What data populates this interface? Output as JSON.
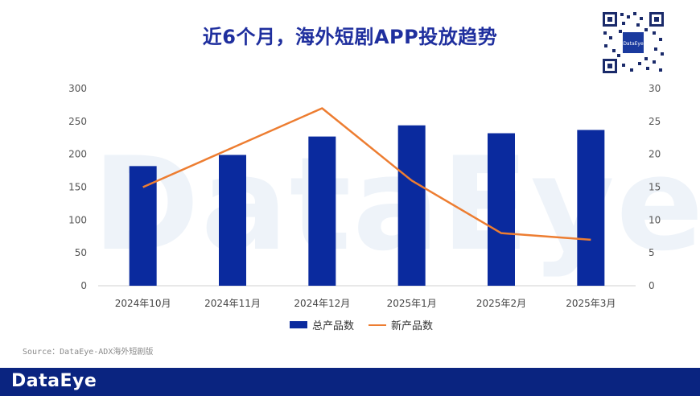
{
  "title": "近6个月，海外短剧APP投放趋势",
  "watermark": "DataEye",
  "source": "Source：DataEye-ADX海外短剧版",
  "footer_logo": "DataEye",
  "qr_label": "DataEye",
  "colors": {
    "bar": "#0a2a9e",
    "line": "#ed7d31",
    "title": "#1f2f9e",
    "footer": "#0a2480"
  },
  "chart_data": {
    "type": "bar",
    "categories": [
      "2024年10月",
      "2024年11月",
      "2024年12月",
      "2025年1月",
      "2025年2月",
      "2025年3月"
    ],
    "series": [
      {
        "name": "总产品数",
        "type": "bar",
        "axis": "left",
        "values": [
          182,
          199,
          227,
          244,
          232,
          237
        ]
      },
      {
        "name": "新产品数",
        "type": "line",
        "axis": "right",
        "values": [
          15,
          21,
          27,
          16,
          8,
          7
        ]
      }
    ],
    "ylim_left": [
      0,
      300
    ],
    "yticks_left": [
      0,
      50,
      100,
      150,
      200,
      250,
      300
    ],
    "ylim_right": [
      0,
      30
    ],
    "yticks_right": [
      0,
      5,
      10,
      15,
      20,
      25,
      30
    ],
    "legend_position": "bottom",
    "grid": false
  }
}
